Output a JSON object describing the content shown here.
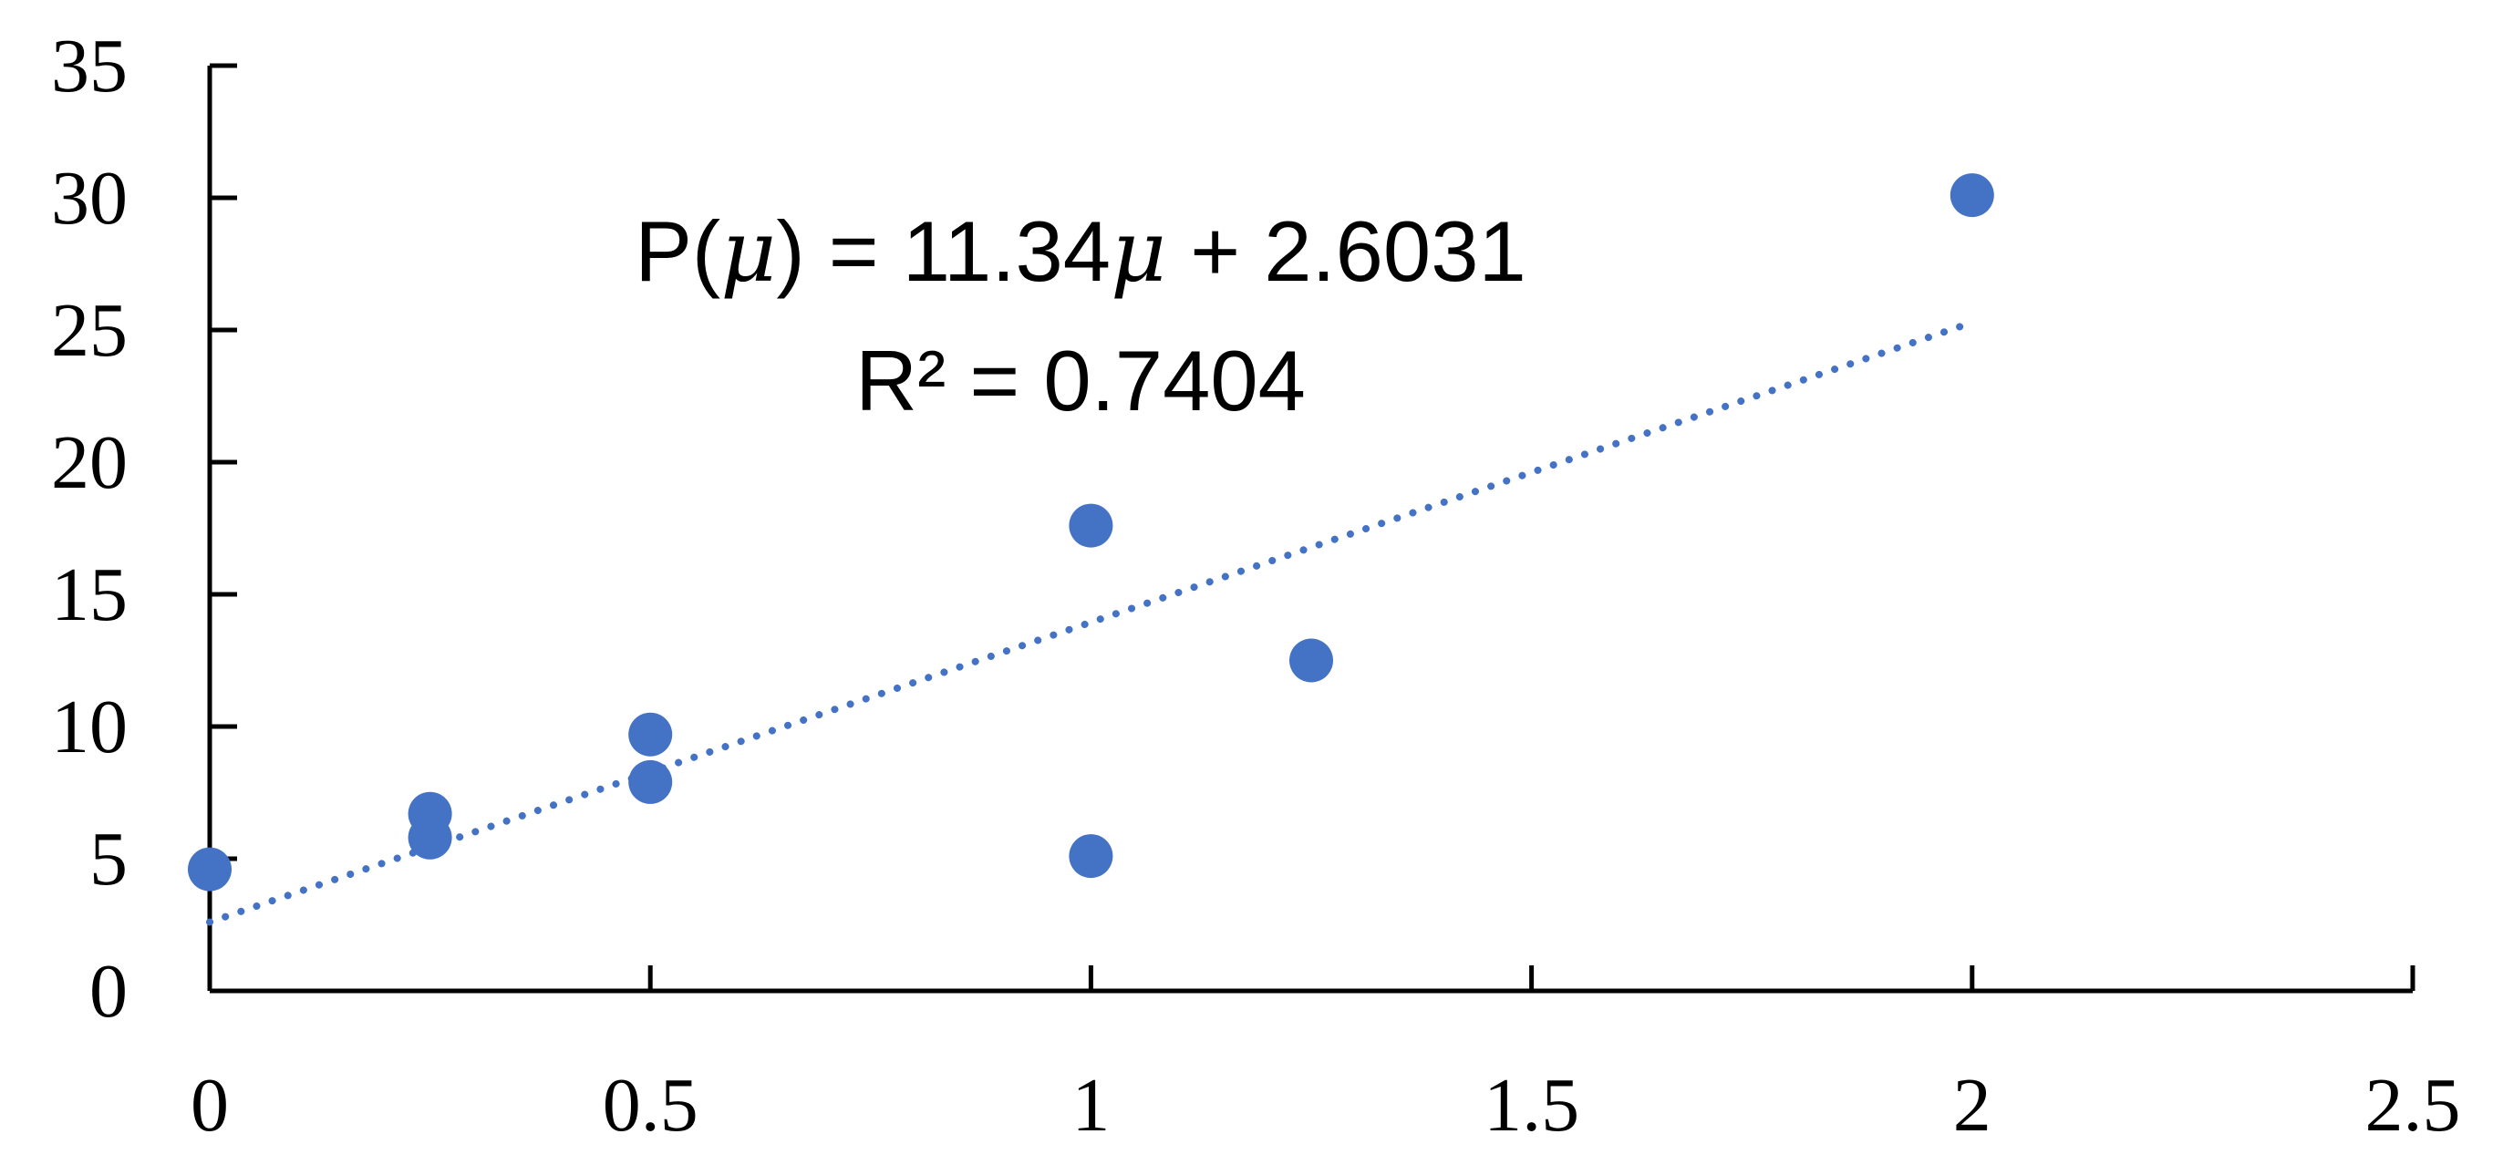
{
  "chart_data": {
    "type": "scatter",
    "title": "",
    "xlabel": "",
    "ylabel": "",
    "xlim": [
      0,
      2.5
    ],
    "ylim": [
      0,
      35
    ],
    "x_ticks": [
      "0",
      "0.5",
      "1",
      "1.5",
      "2",
      "2.5"
    ],
    "y_ticks": [
      "0",
      "5",
      "10",
      "15",
      "20",
      "25",
      "30",
      "35"
    ],
    "grid": false,
    "legend": "none",
    "marker_color": "#4472C4",
    "series": [
      {
        "points": [
          {
            "x": 0,
            "y": 4.6
          },
          {
            "x": 0.25,
            "y": 5.8
          },
          {
            "x": 0.25,
            "y": 6.7
          },
          {
            "x": 0.5,
            "y": 7.9
          },
          {
            "x": 0.5,
            "y": 9.7
          },
          {
            "x": 1,
            "y": 5.1
          },
          {
            "x": 1,
            "y": 17.6
          },
          {
            "x": 1.25,
            "y": 12.5
          },
          {
            "x": 2,
            "y": 30.1
          }
        ]
      }
    ],
    "trendline": {
      "style": "dotted",
      "color": "#4472C4",
      "x_range": [
        0,
        2
      ],
      "slope": 11.34,
      "intercept": 2.6031
    },
    "annotations": {
      "equation_prefix": "P(",
      "equation_mu": "μ",
      "equation_middle": ") = 11.34",
      "equation_mu2": "μ",
      "equation_suffix": " + 2.6031",
      "r_squared": "R² = 0.7404"
    }
  }
}
